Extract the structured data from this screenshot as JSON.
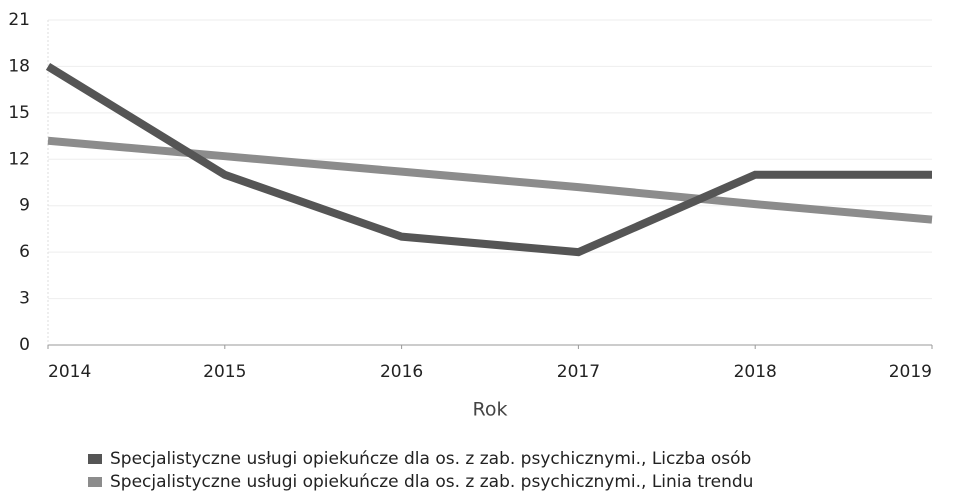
{
  "chart_data": {
    "type": "line",
    "x": [
      2014,
      2015,
      2016,
      2017,
      2018,
      2019
    ],
    "xlim": [
      2014,
      2019
    ],
    "xticks": [
      2014,
      2015,
      2016,
      2017,
      2018,
      2019
    ],
    "ylim": [
      0,
      21
    ],
    "yticks": [
      0,
      3,
      6,
      9,
      12,
      15,
      18,
      21
    ],
    "x_label": "Rok",
    "grid": true,
    "series": [
      {
        "name": "Specjalistyczne usługi opiekuńcze dla os. z zab. psychicznymi., Liczba osób",
        "color": "#555555",
        "values": [
          18,
          11,
          7,
          6,
          11,
          11
        ]
      },
      {
        "name": "Specjalistyczne usługi opiekuńcze dla os. z zab. psychicznymi., Linia trendu",
        "color": "#8c8c8c",
        "values": [
          13.2,
          12.2,
          11.2,
          10.2,
          9.1,
          8.1
        ]
      }
    ]
  }
}
